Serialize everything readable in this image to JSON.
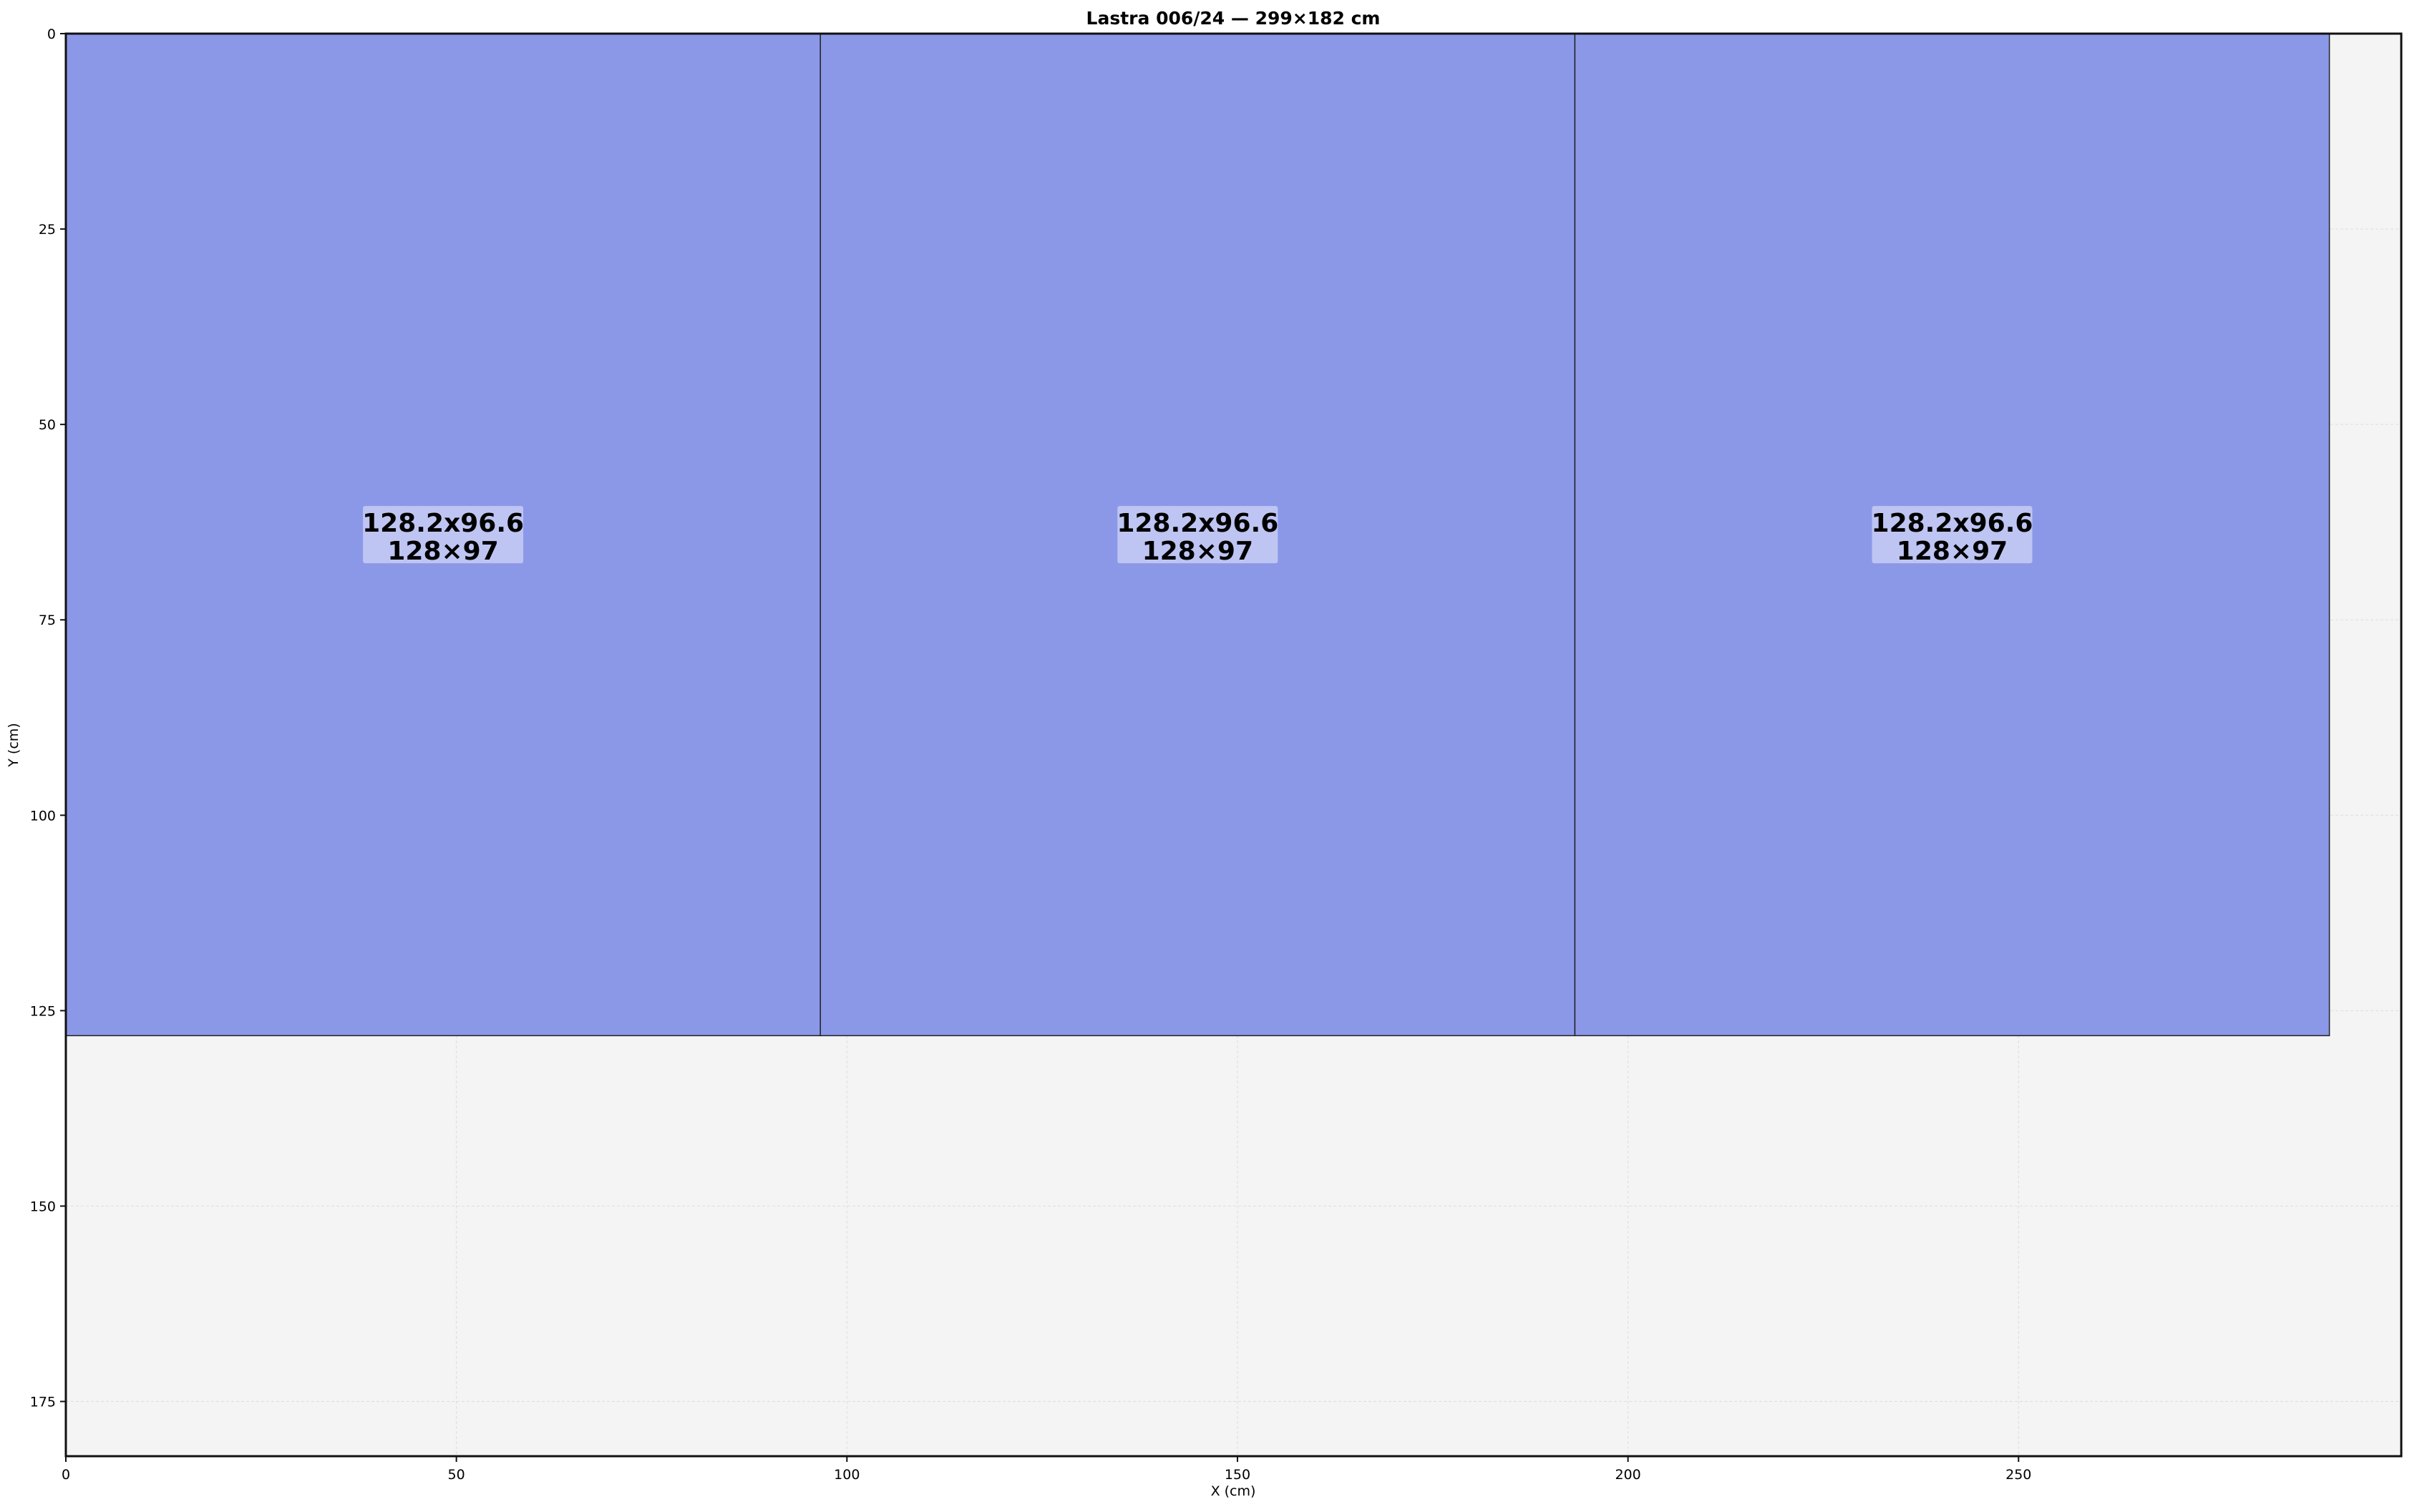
{
  "chart_data": {
    "type": "rectangles",
    "title": "Lastra 006/24 — 299×182 cm",
    "xlabel": "X (cm)",
    "ylabel": "Y (cm)",
    "xlim": [
      0,
      299
    ],
    "ylim": [
      182,
      0
    ],
    "y_inverted": true,
    "grid": true,
    "xticks": [
      "0",
      "50",
      "100",
      "150",
      "200",
      "250"
    ],
    "yticks": [
      "0",
      "25",
      "50",
      "75",
      "100",
      "125",
      "150",
      "175"
    ],
    "sheet_color": "#f4f4f4",
    "piece_color": "#8b98e8",
    "label_bg_color": "#bec5f2",
    "pieces": [
      {
        "x": 0,
        "y": 0,
        "w": 96.6,
        "h": 128.2,
        "label1": "128.2x96.6",
        "label2": "128×97"
      },
      {
        "x": 96.6,
        "y": 0,
        "w": 96.6,
        "h": 128.2,
        "label1": "128.2x96.6",
        "label2": "128×97"
      },
      {
        "x": 193.2,
        "y": 0,
        "w": 96.6,
        "h": 128.2,
        "label1": "128.2x96.6",
        "label2": "128×97"
      }
    ]
  }
}
